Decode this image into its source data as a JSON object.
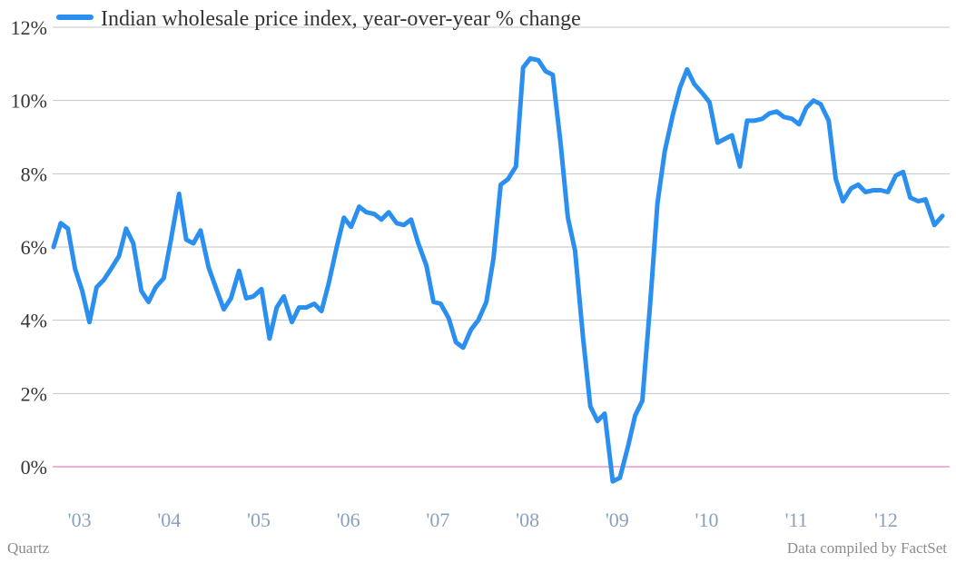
{
  "chart_data": {
    "type": "line",
    "title": "",
    "xlabel": "",
    "ylabel": "",
    "ylim": [
      -0.5,
      12
    ],
    "yticks": [
      0,
      2,
      4,
      6,
      8,
      10,
      12
    ],
    "ytick_labels": [
      "0%",
      "2%",
      "4%",
      "6%",
      "8%",
      "10%",
      "12%"
    ],
    "x_ticks": [
      2003,
      2004,
      2005,
      2006,
      2007,
      2008,
      2009,
      2010,
      2011,
      2012
    ],
    "x_tick_labels": [
      "'03",
      "'04",
      "'05",
      "'06",
      "'07",
      "'08",
      "'09",
      "'10",
      "'11",
      "'12"
    ],
    "xlim": [
      2002.71,
      2012.72
    ],
    "grid": true,
    "legend_position": "top-left",
    "zero_line": true,
    "series": [
      {
        "name": "Indian wholesale price index, year-over-year % change",
        "color": "#2b8ff0",
        "points": [
          [
            2002.72,
            6.0
          ],
          [
            2002.8,
            6.65
          ],
          [
            2002.88,
            6.5
          ],
          [
            2002.96,
            5.4
          ],
          [
            2003.04,
            4.8
          ],
          [
            2003.12,
            3.95
          ],
          [
            2003.2,
            4.9
          ],
          [
            2003.28,
            5.1
          ],
          [
            2003.36,
            5.4
          ],
          [
            2003.45,
            5.75
          ],
          [
            2003.53,
            6.5
          ],
          [
            2003.61,
            6.1
          ],
          [
            2003.7,
            4.8
          ],
          [
            2003.78,
            4.5
          ],
          [
            2003.86,
            4.9
          ],
          [
            2003.95,
            5.15
          ],
          [
            2004.03,
            6.2
          ],
          [
            2004.12,
            7.45
          ],
          [
            2004.2,
            6.2
          ],
          [
            2004.28,
            6.1
          ],
          [
            2004.36,
            6.45
          ],
          [
            2004.45,
            5.45
          ],
          [
            2004.53,
            4.9
          ],
          [
            2004.62,
            4.3
          ],
          [
            2004.7,
            4.6
          ],
          [
            2004.79,
            5.35
          ],
          [
            2004.87,
            4.6
          ],
          [
            2004.95,
            4.65
          ],
          [
            2005.04,
            4.85
          ],
          [
            2005.13,
            3.5
          ],
          [
            2005.21,
            4.35
          ],
          [
            2005.29,
            4.65
          ],
          [
            2005.38,
            3.95
          ],
          [
            2005.46,
            4.35
          ],
          [
            2005.54,
            4.35
          ],
          [
            2005.63,
            4.45
          ],
          [
            2005.71,
            4.25
          ],
          [
            2005.79,
            5.0
          ],
          [
            2005.88,
            6.0
          ],
          [
            2005.96,
            6.8
          ],
          [
            2006.04,
            6.55
          ],
          [
            2006.13,
            7.1
          ],
          [
            2006.21,
            6.95
          ],
          [
            2006.3,
            6.9
          ],
          [
            2006.38,
            6.75
          ],
          [
            2006.46,
            6.95
          ],
          [
            2006.55,
            6.65
          ],
          [
            2006.63,
            6.6
          ],
          [
            2006.71,
            6.75
          ],
          [
            2006.79,
            6.1
          ],
          [
            2006.88,
            5.5
          ],
          [
            2006.96,
            4.5
          ],
          [
            2007.04,
            4.45
          ],
          [
            2007.13,
            4.05
          ],
          [
            2007.21,
            3.4
          ],
          [
            2007.29,
            3.25
          ],
          [
            2007.38,
            3.75
          ],
          [
            2007.46,
            4.0
          ],
          [
            2007.55,
            4.5
          ],
          [
            2007.63,
            5.7
          ],
          [
            2007.71,
            7.7
          ],
          [
            2007.79,
            7.85
          ],
          [
            2007.88,
            8.2
          ],
          [
            2007.96,
            10.9
          ],
          [
            2008.04,
            11.15
          ],
          [
            2008.13,
            11.1
          ],
          [
            2008.21,
            10.8
          ],
          [
            2008.29,
            10.7
          ],
          [
            2008.38,
            8.8
          ],
          [
            2008.46,
            6.8
          ],
          [
            2008.54,
            5.9
          ],
          [
            2008.63,
            3.5
          ],
          [
            2008.71,
            1.65
          ],
          [
            2008.79,
            1.25
          ],
          [
            2008.87,
            1.45
          ],
          [
            2008.96,
            -0.4
          ],
          [
            2009.04,
            -0.3
          ],
          [
            2009.13,
            0.55
          ],
          [
            2009.21,
            1.4
          ],
          [
            2009.29,
            1.8
          ],
          [
            2009.38,
            4.5
          ],
          [
            2009.46,
            7.2
          ],
          [
            2009.54,
            8.6
          ],
          [
            2009.63,
            9.6
          ],
          [
            2009.71,
            10.35
          ],
          [
            2009.79,
            10.85
          ],
          [
            2009.87,
            10.45
          ],
          [
            2009.96,
            10.2
          ],
          [
            2010.04,
            9.95
          ],
          [
            2010.13,
            8.85
          ],
          [
            2010.21,
            8.95
          ],
          [
            2010.29,
            9.05
          ],
          [
            2010.38,
            8.2
          ],
          [
            2010.46,
            9.45
          ],
          [
            2010.54,
            9.45
          ],
          [
            2010.63,
            9.5
          ],
          [
            2010.71,
            9.65
          ],
          [
            2010.79,
            9.7
          ],
          [
            2010.87,
            9.55
          ],
          [
            2010.96,
            9.5
          ],
          [
            2011.04,
            9.35
          ],
          [
            2011.12,
            9.8
          ],
          [
            2011.2,
            10.0
          ],
          [
            2011.28,
            9.9
          ],
          [
            2011.37,
            9.45
          ],
          [
            2011.45,
            7.85
          ],
          [
            2011.53,
            7.25
          ],
          [
            2011.62,
            7.6
          ],
          [
            2011.7,
            7.7
          ],
          [
            2011.78,
            7.5
          ],
          [
            2011.87,
            7.55
          ],
          [
            2011.95,
            7.55
          ],
          [
            2012.03,
            7.5
          ],
          [
            2012.12,
            7.95
          ],
          [
            2012.2,
            8.05
          ],
          [
            2012.28,
            7.35
          ],
          [
            2012.37,
            7.25
          ],
          [
            2012.45,
            7.3
          ],
          [
            2012.55,
            6.6
          ],
          [
            2012.64,
            6.85
          ]
        ]
      }
    ]
  },
  "footer": {
    "left": "Quartz",
    "right": "Data compiled by FactSet"
  }
}
